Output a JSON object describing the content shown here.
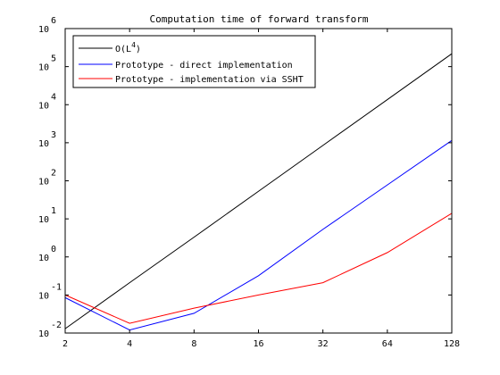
{
  "chart_data": {
    "type": "line",
    "title": "Computation time of forward transform",
    "xlabel": "",
    "ylabel": "",
    "xscale": "log2",
    "yscale": "log10",
    "x": [
      2,
      4,
      8,
      16,
      32,
      64,
      128
    ],
    "xtick_labels": [
      "2",
      "4",
      "8",
      "16",
      "32",
      "64",
      "128"
    ],
    "xlim": [
      2,
      128
    ],
    "ylim": [
      0.01,
      1000000
    ],
    "ytick_labels": [
      {
        "base": "10",
        "exp": "-2"
      },
      {
        "base": "10",
        "exp": "-1"
      },
      {
        "base": "10",
        "exp": "0"
      },
      {
        "base": "10",
        "exp": "1"
      },
      {
        "base": "10",
        "exp": "2"
      },
      {
        "base": "10",
        "exp": "3"
      },
      {
        "base": "10",
        "exp": "4"
      },
      {
        "base": "10",
        "exp": "5"
      },
      {
        "base": "10",
        "exp": "6"
      }
    ],
    "ytick_values": [
      0.01,
      0.1,
      1,
      10,
      100,
      1000,
      10000,
      100000,
      1000000
    ],
    "grid": false,
    "legend_position": "top-left",
    "series": [
      {
        "name": "O(L",
        "name_sup": "4",
        "name_tail": ")",
        "color": "#000000",
        "values": [
          0.013,
          0.21,
          3.3,
          53,
          850,
          13600,
          218000
        ]
      },
      {
        "name": "Prototype - direct implementation",
        "color": "#0000ff",
        "values": [
          0.085,
          0.012,
          0.033,
          0.32,
          5.3,
          78,
          1150
        ]
      },
      {
        "name": "Prototype - implementation via SSHT",
        "color": "#ff0000",
        "values": [
          0.1,
          0.018,
          0.045,
          0.1,
          0.21,
          1.3,
          14
        ]
      }
    ]
  }
}
